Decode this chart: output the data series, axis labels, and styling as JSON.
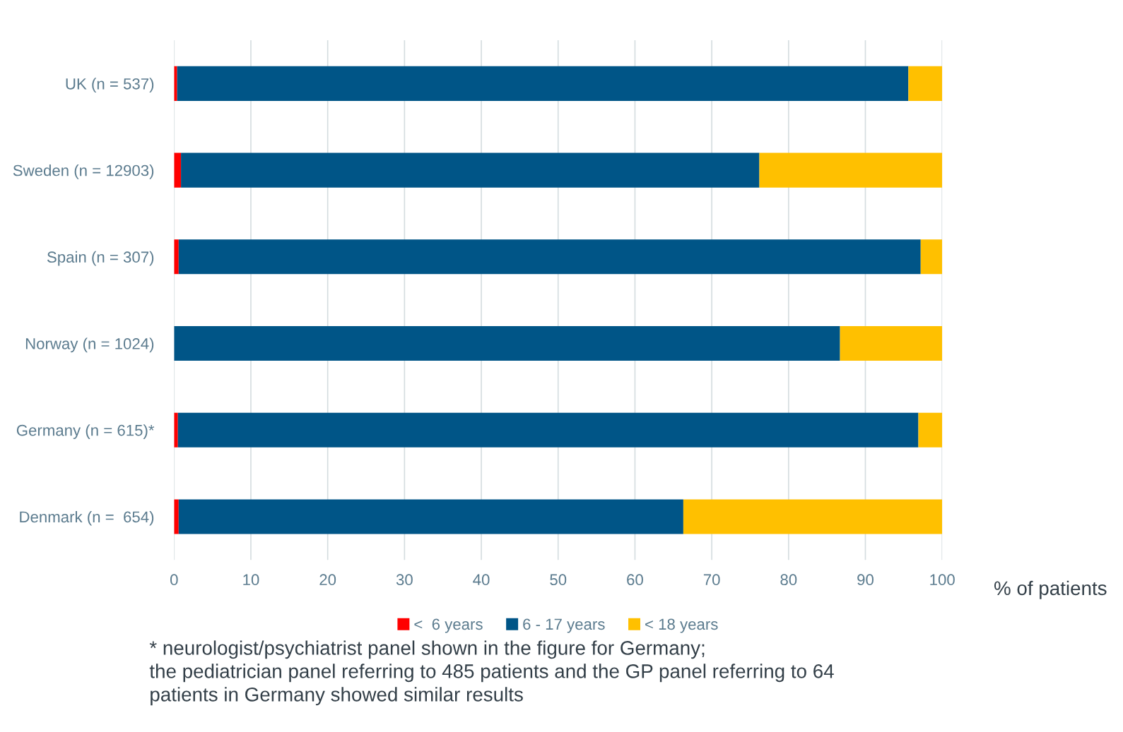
{
  "chart_data": {
    "type": "bar",
    "orientation": "horizontal",
    "stacked": true,
    "xlabel": "% of patients",
    "categories": [
      "UK (n = 537)",
      "Sweden (n = 12903)",
      "Spain (n = 307)",
      "Norway (n = 1024)",
      "Germany (n = 615)*",
      "Denmark (n =  654)"
    ],
    "series": [
      {
        "name": "<  6 years",
        "color": "#ff0000",
        "values": [
          0.4,
          0.9,
          0.6,
          0,
          0.5,
          0.6
        ]
      },
      {
        "name": "6 - 17 years",
        "color": "#005587",
        "values": [
          95.2,
          75.3,
          96.6,
          86.7,
          96.4,
          65.7
        ]
      },
      {
        "name": "< 18 years",
        "color": "#ffc000",
        "values": [
          4.4,
          23.8,
          2.8,
          13.3,
          3.1,
          33.7
        ]
      }
    ],
    "xlim": [
      0,
      100
    ],
    "xticks": [
      0,
      10,
      20,
      30,
      40,
      50,
      60,
      70,
      80,
      90,
      100
    ],
    "grid": "x",
    "legend": "bottom",
    "annotations": [
      "* neurologist/psychiatrist panel shown in the figure for Germany;\nthe pediatrician panel referring to 485 patients and the GP panel referring to 64\npatients in Germany showed similar results"
    ]
  }
}
